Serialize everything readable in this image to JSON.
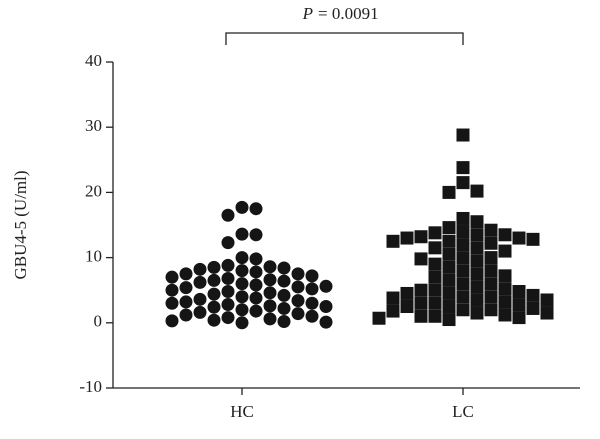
{
  "chart_data": {
    "type": "scatter",
    "y_label": "GBU4-5 (U/ml)",
    "annotation": {
      "italic": "P",
      "text": "= 0.0091"
    },
    "categories": [
      "HC",
      "LC"
    ],
    "ylim": [
      -10,
      40
    ],
    "yticks": [
      -10,
      0,
      10,
      20,
      30,
      40
    ],
    "series": [
      {
        "marker": "circle",
        "color": "#151515",
        "values": [
          17.5,
          17.7,
          16.5,
          13.5,
          12.3,
          13.6,
          10.0,
          9.8,
          8.8,
          8.6,
          8.4,
          8.2,
          8.0,
          7.8,
          7.5,
          7.2,
          7.0,
          6.8,
          6.6,
          6.4,
          6.2,
          6.0,
          5.8,
          5.6,
          5.4,
          5.2,
          5.0,
          4.8,
          4.6,
          4.4,
          4.2,
          4.0,
          3.8,
          3.6,
          3.4,
          3.2,
          3.0,
          2.8,
          2.6,
          2.4,
          2.2,
          2.0,
          1.8,
          1.6,
          1.4,
          1.2,
          1.0,
          0.8,
          0.6,
          0.4,
          0.3,
          0.2,
          0.1,
          0.0,
          2.5,
          3.0,
          5.5,
          6.5,
          7.5,
          8.5
        ]
      },
      {
        "marker": "square",
        "color": "#151515",
        "values": [
          28.8,
          23.8,
          20.0,
          21.5,
          20.2,
          16.0,
          15.5,
          14.6,
          14.2,
          13.8,
          13.5,
          13.2,
          13.0,
          12.8,
          12.5,
          12.2,
          12.0,
          11.5,
          11.0,
          10.5,
          10.0,
          9.8,
          9.5,
          9.0,
          8.5,
          8.0,
          7.5,
          7.2,
          7.0,
          6.5,
          6.0,
          5.5,
          5.2,
          5.0,
          4.8,
          4.5,
          4.2,
          4.0,
          3.8,
          3.5,
          3.2,
          3.0,
          2.8,
          2.5,
          2.2,
          2.0,
          1.8,
          1.5,
          1.2,
          1.0,
          0.8,
          0.5,
          3.0,
          2.5,
          1.5,
          5.0,
          4.0,
          12.5,
          13.0,
          11.5,
          10.0,
          8.0,
          6.0,
          2.0,
          1.0,
          0.7,
          14.0,
          13.5,
          3.5,
          4.5
        ]
      }
    ]
  }
}
